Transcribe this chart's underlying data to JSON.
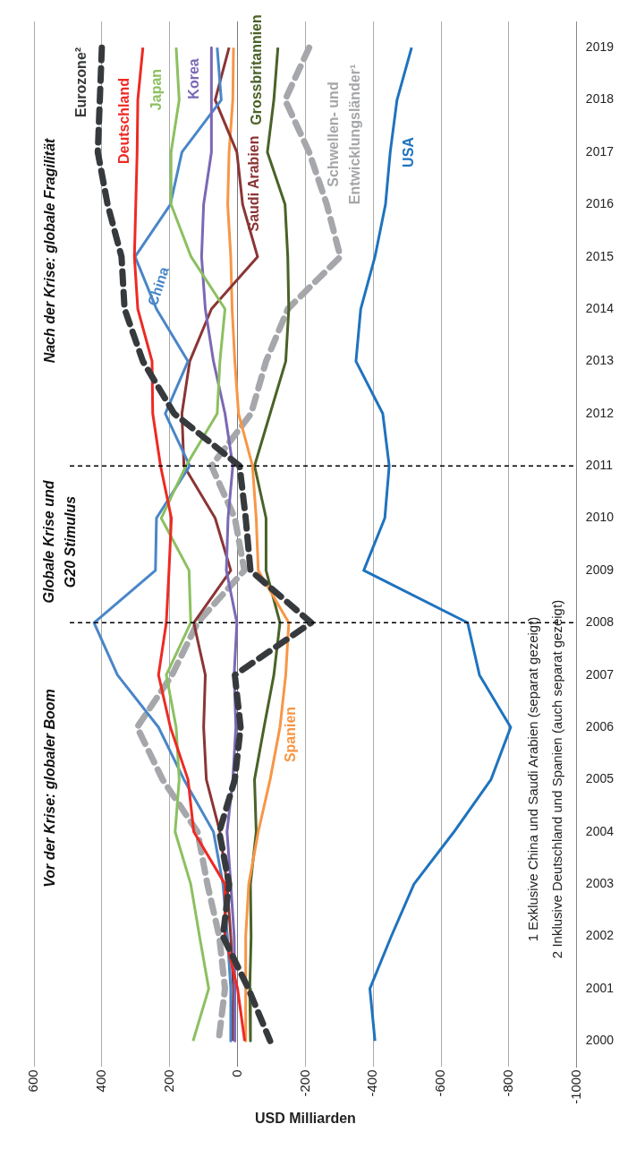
{
  "chart_data": {
    "type": "line",
    "orientation": "horizontal",
    "xlabel": "USD Milliarden",
    "categories": [
      "2019",
      "2018",
      "2017",
      "2016",
      "2015",
      "2014",
      "2013",
      "2012",
      "2011",
      "2010",
      "2009",
      "2008",
      "2007",
      "2006",
      "2005",
      "2004",
      "2003",
      "2002",
      "2001",
      "2000"
    ],
    "xlim": [
      600,
      -1000
    ],
    "xticks": [
      600,
      400,
      200,
      0,
      -200,
      -400,
      -600,
      -800,
      -1000
    ],
    "grid": "x",
    "legend": false,
    "marker": "none",
    "series": [
      {
        "name": "Eurozone²",
        "color": "#373a3d",
        "line_style": "dashed",
        "values": [
          400,
          406,
          412,
          383,
          342,
          333,
          279,
          187,
          -6,
          -24,
          -38,
          -217,
          8,
          -9,
          8,
          54,
          25,
          43,
          -32,
          -96
        ]
      },
      {
        "name": "Deutschland",
        "color": "#ee2a24",
        "values": [
          279,
          294,
          296,
          300,
          304,
          294,
          252,
          250,
          227,
          195,
          202,
          210,
          233,
          198,
          146,
          129,
          37,
          37,
          0,
          -21
        ]
      },
      {
        "name": "Japan",
        "color": "#8cc060",
        "values": [
          181,
          172,
          196,
          196,
          137,
          37,
          52,
          60,
          152,
          225,
          143,
          138,
          210,
          181,
          172,
          184,
          138,
          112,
          85,
          131
        ]
      },
      {
        "name": "Korea",
        "color": "#7b68b5",
        "values": [
          77,
          77,
          77,
          100,
          106,
          95,
          71,
          37,
          14,
          28,
          33,
          2,
          10,
          5,
          14,
          31,
          20,
          10,
          8,
          8
        ]
      },
      {
        "name": "China",
        "color": "#4a86c8",
        "values": [
          60,
          48,
          164,
          198,
          302,
          239,
          146,
          213,
          141,
          239,
          242,
          423,
          354,
          233,
          158,
          71,
          43,
          30,
          20,
          20
        ]
      },
      {
        "name": "Saudi Arabien",
        "color": "#8b3535",
        "values": [
          25,
          66,
          2,
          -15,
          -59,
          77,
          141,
          164,
          158,
          66,
          20,
          129,
          95,
          100,
          92,
          52,
          31,
          20,
          12,
          16
        ]
      },
      {
        "name": "Spanien",
        "color": "#f79646",
        "values": [
          12,
          14,
          25,
          29,
          20,
          16,
          8,
          -3,
          -44,
          -55,
          -61,
          -151,
          -142,
          -125,
          -96,
          -61,
          -33,
          -24,
          -24,
          -24
        ]
      },
      {
        "name": "Grossbritannien",
        "color": "#4a6228",
        "values": [
          -119,
          -107,
          -88,
          -140,
          -148,
          -151,
          -142,
          -96,
          -50,
          -84,
          -84,
          -125,
          -107,
          -78,
          -50,
          -55,
          -38,
          -40,
          -36,
          -38
        ]
      },
      {
        "name": "Schwellen- und Entwicklungsländer¹",
        "color": "#a5a7aa",
        "line_style": "dashed",
        "values": [
          -211,
          -140,
          -211,
          -263,
          -303,
          -148,
          -84,
          -40,
          77,
          8,
          -20,
          118,
          193,
          296,
          221,
          118,
          89,
          54,
          37,
          56
        ]
      },
      {
        "name": "USA",
        "color": "#1f73be",
        "values": [
          -513,
          -470,
          -450,
          -436,
          -405,
          -363,
          -349,
          -428,
          -447,
          -434,
          -372,
          -678,
          -713,
          -805,
          -747,
          -638,
          -520,
          -453,
          -390,
          -405
        ]
      }
    ],
    "ref_lines": [
      {
        "axis": "y",
        "value": "2008",
        "color": "#000000",
        "line_style": "dashed"
      },
      {
        "axis": "y",
        "value": "2011",
        "color": "#000000",
        "line_style": "dashed"
      }
    ],
    "annotations": [
      "Vor der Krise: globaler Boom",
      "Globale Krise und G20 Stimulus",
      "Nach der Krise: globale Fragilität",
      "1 Exklusive China und Saudi Arabien (separat gezeigt)",
      "2 Inklusive Deutschland und Spanien (auch separat gezeigt)"
    ]
  }
}
